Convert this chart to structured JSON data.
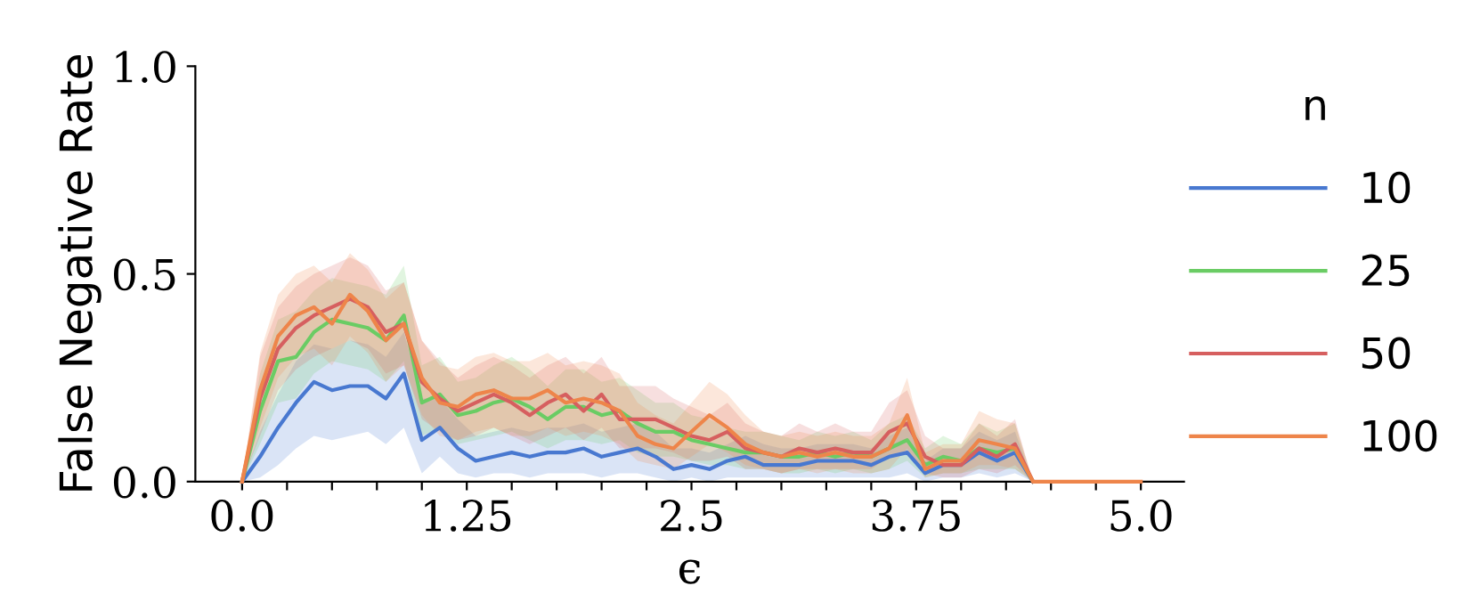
{
  "chart_data": {
    "type": "line",
    "xlabel": "ϵ",
    "ylabel": "False Negative Rate",
    "legend_title": "n",
    "legend": "right",
    "grid": false,
    "x": [
      0.0,
      0.1,
      0.2,
      0.3,
      0.4,
      0.5,
      0.6,
      0.7,
      0.8,
      0.9,
      1.0,
      1.1,
      1.2,
      1.3,
      1.4,
      1.5,
      1.6,
      1.7,
      1.8,
      1.9,
      2.0,
      2.1,
      2.2,
      2.3,
      2.4,
      2.5,
      2.6,
      2.7,
      2.8,
      2.9,
      3.0,
      3.1,
      3.2,
      3.3,
      3.4,
      3.5,
      3.6,
      3.7,
      3.8,
      3.9,
      4.0,
      4.1,
      4.2,
      4.3,
      4.4,
      4.5,
      4.6,
      4.7,
      4.8,
      4.9,
      5.0
    ],
    "xlim": [
      -0.26,
      5.24
    ],
    "ylim": [
      0.0,
      1.0
    ],
    "xticks": [
      {
        "value": 0.0,
        "label": "0.0"
      },
      {
        "value": 0.25,
        "label": null
      },
      {
        "value": 0.5,
        "label": null
      },
      {
        "value": 0.75,
        "label": null
      },
      {
        "value": 1.0,
        "label": null
      },
      {
        "value": 1.25,
        "label": "1.25"
      },
      {
        "value": 1.5,
        "label": null
      },
      {
        "value": 1.75,
        "label": null
      },
      {
        "value": 2.0,
        "label": null
      },
      {
        "value": 2.25,
        "label": null
      },
      2.5,
      {
        "value": 2.75,
        "label": null
      },
      {
        "value": 3.0,
        "label": null
      },
      {
        "value": 3.25,
        "label": null
      },
      {
        "value": 3.5,
        "label": null
      },
      {
        "value": 3.75,
        "label": "3.75"
      },
      {
        "value": 4.0,
        "label": null
      },
      {
        "value": 4.25,
        "label": null
      },
      {
        "value": 4.5,
        "label": null
      },
      {
        "value": 4.75,
        "label": null
      },
      {
        "value": 5.0,
        "label": "5.0"
      }
    ],
    "yticks": [
      {
        "value": 0.0,
        "label": "0.0"
      },
      0.5,
      {
        "value": 1.0,
        "label": "1.0"
      }
    ],
    "series": [
      {
        "name": "10",
        "color": "#4878d0",
        "values": [
          0,
          0.06,
          0.13,
          0.19,
          0.24,
          0.22,
          0.23,
          0.23,
          0.2,
          0.26,
          0.1,
          0.13,
          0.08,
          0.05,
          0.06,
          0.07,
          0.06,
          0.07,
          0.07,
          0.08,
          0.06,
          0.07,
          0.08,
          0.06,
          0.03,
          0.04,
          0.03,
          0.05,
          0.06,
          0.04,
          0.04,
          0.04,
          0.05,
          0.05,
          0.05,
          0.04,
          0.06,
          0.07,
          0.02,
          0.04,
          0.04,
          0.07,
          0.05,
          0.07,
          0,
          null,
          null,
          null,
          null,
          null,
          null
        ],
        "lower": [
          0,
          0.01,
          0.04,
          0.08,
          0.11,
          0.1,
          0.11,
          0.12,
          0.09,
          0.13,
          0.02,
          0.06,
          0.02,
          0.01,
          0.02,
          0.02,
          0.01,
          0.02,
          0.02,
          0.02,
          0.01,
          0.02,
          0.02,
          0.01,
          0,
          0.01,
          0,
          0.01,
          0.01,
          0.01,
          0.01,
          0.01,
          0.01,
          0.01,
          0.01,
          0.01,
          0.01,
          0.02,
          0,
          0.01,
          0.01,
          0.02,
          0.01,
          0.02,
          0,
          0,
          0,
          0,
          0,
          0,
          0
        ],
        "upper": [
          0,
          0.12,
          0.21,
          0.29,
          0.33,
          0.32,
          0.34,
          0.33,
          0.3,
          0.36,
          0.2,
          0.2,
          0.15,
          0.11,
          0.12,
          0.13,
          0.12,
          0.13,
          0.13,
          0.14,
          0.12,
          0.13,
          0.14,
          0.12,
          0.08,
          0.08,
          0.07,
          0.09,
          0.11,
          0.09,
          0.08,
          0.08,
          0.09,
          0.09,
          0.09,
          0.08,
          0.11,
          0.13,
          0.05,
          0.08,
          0.08,
          0.12,
          0.1,
          0.12,
          0,
          0,
          0,
          0,
          0,
          0,
          0
        ]
      },
      {
        "name": "25",
        "color": "#6acc64",
        "values": [
          0,
          0.17,
          0.29,
          0.3,
          0.36,
          0.39,
          0.38,
          0.37,
          0.34,
          0.4,
          0.19,
          0.21,
          0.16,
          0.17,
          0.19,
          0.2,
          0.18,
          0.15,
          0.18,
          0.18,
          0.16,
          0.17,
          0.14,
          0.12,
          0.12,
          0.1,
          0.09,
          0.08,
          0.07,
          0.07,
          0.06,
          0.06,
          0.07,
          0.06,
          0.07,
          0.06,
          0.08,
          0.1,
          0.04,
          0.06,
          0.05,
          0.08,
          0.07,
          0.08,
          0,
          null,
          null,
          null,
          null,
          null,
          null
        ],
        "lower": [
          0,
          0.09,
          0.19,
          0.2,
          0.26,
          0.29,
          0.28,
          0.27,
          0.24,
          0.29,
          0.11,
          0.13,
          0.09,
          0.1,
          0.11,
          0.12,
          0.1,
          0.08,
          0.1,
          0.1,
          0.09,
          0.1,
          0.07,
          0.06,
          0.06,
          0.05,
          0.04,
          0.04,
          0.03,
          0.03,
          0.02,
          0.02,
          0.03,
          0.02,
          0.03,
          0.02,
          0.03,
          0.05,
          0.01,
          0.02,
          0.02,
          0.03,
          0.03,
          0.03,
          0,
          0,
          0,
          0,
          0,
          0,
          0
        ],
        "upper": [
          0,
          0.26,
          0.39,
          0.41,
          0.46,
          0.49,
          0.48,
          0.47,
          0.45,
          0.52,
          0.28,
          0.3,
          0.24,
          0.25,
          0.28,
          0.3,
          0.27,
          0.23,
          0.27,
          0.27,
          0.24,
          0.25,
          0.22,
          0.19,
          0.19,
          0.16,
          0.15,
          0.13,
          0.12,
          0.12,
          0.11,
          0.1,
          0.12,
          0.11,
          0.12,
          0.1,
          0.14,
          0.16,
          0.08,
          0.11,
          0.09,
          0.14,
          0.12,
          0.14,
          0,
          0,
          0,
          0,
          0,
          0,
          0
        ]
      },
      {
        "name": "50",
        "color": "#d65f5f",
        "values": [
          0,
          0.2,
          0.32,
          0.37,
          0.4,
          0.42,
          0.44,
          0.42,
          0.36,
          0.38,
          0.24,
          0.2,
          0.17,
          0.19,
          0.21,
          0.19,
          0.16,
          0.19,
          0.21,
          0.17,
          0.21,
          0.15,
          0.15,
          0.15,
          0.13,
          0.11,
          0.1,
          0.12,
          0.08,
          0.07,
          0.06,
          0.08,
          0.07,
          0.08,
          0.07,
          0.07,
          0.12,
          0.14,
          0.06,
          0.04,
          0.04,
          0.08,
          0.06,
          0.09,
          0,
          null,
          null,
          null,
          null,
          null,
          null
        ],
        "lower": [
          0,
          0.11,
          0.22,
          0.27,
          0.3,
          0.32,
          0.34,
          0.32,
          0.26,
          0.28,
          0.15,
          0.12,
          0.1,
          0.11,
          0.13,
          0.11,
          0.09,
          0.11,
          0.13,
          0.1,
          0.13,
          0.08,
          0.08,
          0.08,
          0.07,
          0.05,
          0.05,
          0.06,
          0.03,
          0.03,
          0.02,
          0.03,
          0.03,
          0.03,
          0.03,
          0.03,
          0.06,
          0.07,
          0.02,
          0.01,
          0.01,
          0.03,
          0.02,
          0.04,
          0,
          0,
          0,
          0,
          0,
          0,
          0
        ],
        "upper": [
          0,
          0.3,
          0.42,
          0.47,
          0.5,
          0.52,
          0.54,
          0.52,
          0.46,
          0.48,
          0.34,
          0.29,
          0.25,
          0.28,
          0.3,
          0.28,
          0.25,
          0.28,
          0.3,
          0.26,
          0.3,
          0.23,
          0.23,
          0.23,
          0.2,
          0.18,
          0.16,
          0.19,
          0.14,
          0.12,
          0.11,
          0.14,
          0.12,
          0.14,
          0.12,
          0.12,
          0.19,
          0.22,
          0.11,
          0.08,
          0.08,
          0.14,
          0.11,
          0.15,
          0,
          0,
          0,
          0,
          0,
          0,
          0
        ]
      },
      {
        "name": "100",
        "color": "#ee854a",
        "values": [
          0,
          0.22,
          0.35,
          0.4,
          0.42,
          0.38,
          0.45,
          0.41,
          0.34,
          0.38,
          0.25,
          0.19,
          0.18,
          0.21,
          0.22,
          0.2,
          0.2,
          0.22,
          0.19,
          0.2,
          0.19,
          0.17,
          0.11,
          0.09,
          0.08,
          0.12,
          0.16,
          0.13,
          0.09,
          0.07,
          0.06,
          0.07,
          0.06,
          0.07,
          0.06,
          0.06,
          0.08,
          0.16,
          0.03,
          0.05,
          0.05,
          0.1,
          0.09,
          0.08,
          0,
          0,
          0,
          0,
          0,
          0,
          0
        ],
        "lower": [
          0,
          0.13,
          0.25,
          0.3,
          0.32,
          0.28,
          0.35,
          0.31,
          0.24,
          0.28,
          0.16,
          0.11,
          0.1,
          0.12,
          0.13,
          0.11,
          0.11,
          0.13,
          0.11,
          0.12,
          0.11,
          0.09,
          0.05,
          0.04,
          0.03,
          0.06,
          0.09,
          0.07,
          0.04,
          0.03,
          0.02,
          0.03,
          0.02,
          0.03,
          0.02,
          0.02,
          0.03,
          0.08,
          0.01,
          0.02,
          0.02,
          0.04,
          0.04,
          0.03,
          0,
          0,
          0,
          0,
          0,
          0,
          0
        ],
        "upper": [
          0,
          0.31,
          0.45,
          0.5,
          0.52,
          0.48,
          0.55,
          0.51,
          0.44,
          0.48,
          0.34,
          0.28,
          0.27,
          0.3,
          0.31,
          0.29,
          0.29,
          0.31,
          0.28,
          0.29,
          0.28,
          0.26,
          0.19,
          0.16,
          0.14,
          0.19,
          0.24,
          0.21,
          0.16,
          0.12,
          0.11,
          0.12,
          0.11,
          0.12,
          0.11,
          0.11,
          0.14,
          0.25,
          0.07,
          0.09,
          0.09,
          0.17,
          0.15,
          0.14,
          0,
          0,
          0,
          0,
          0,
          0,
          0
        ]
      }
    ]
  }
}
